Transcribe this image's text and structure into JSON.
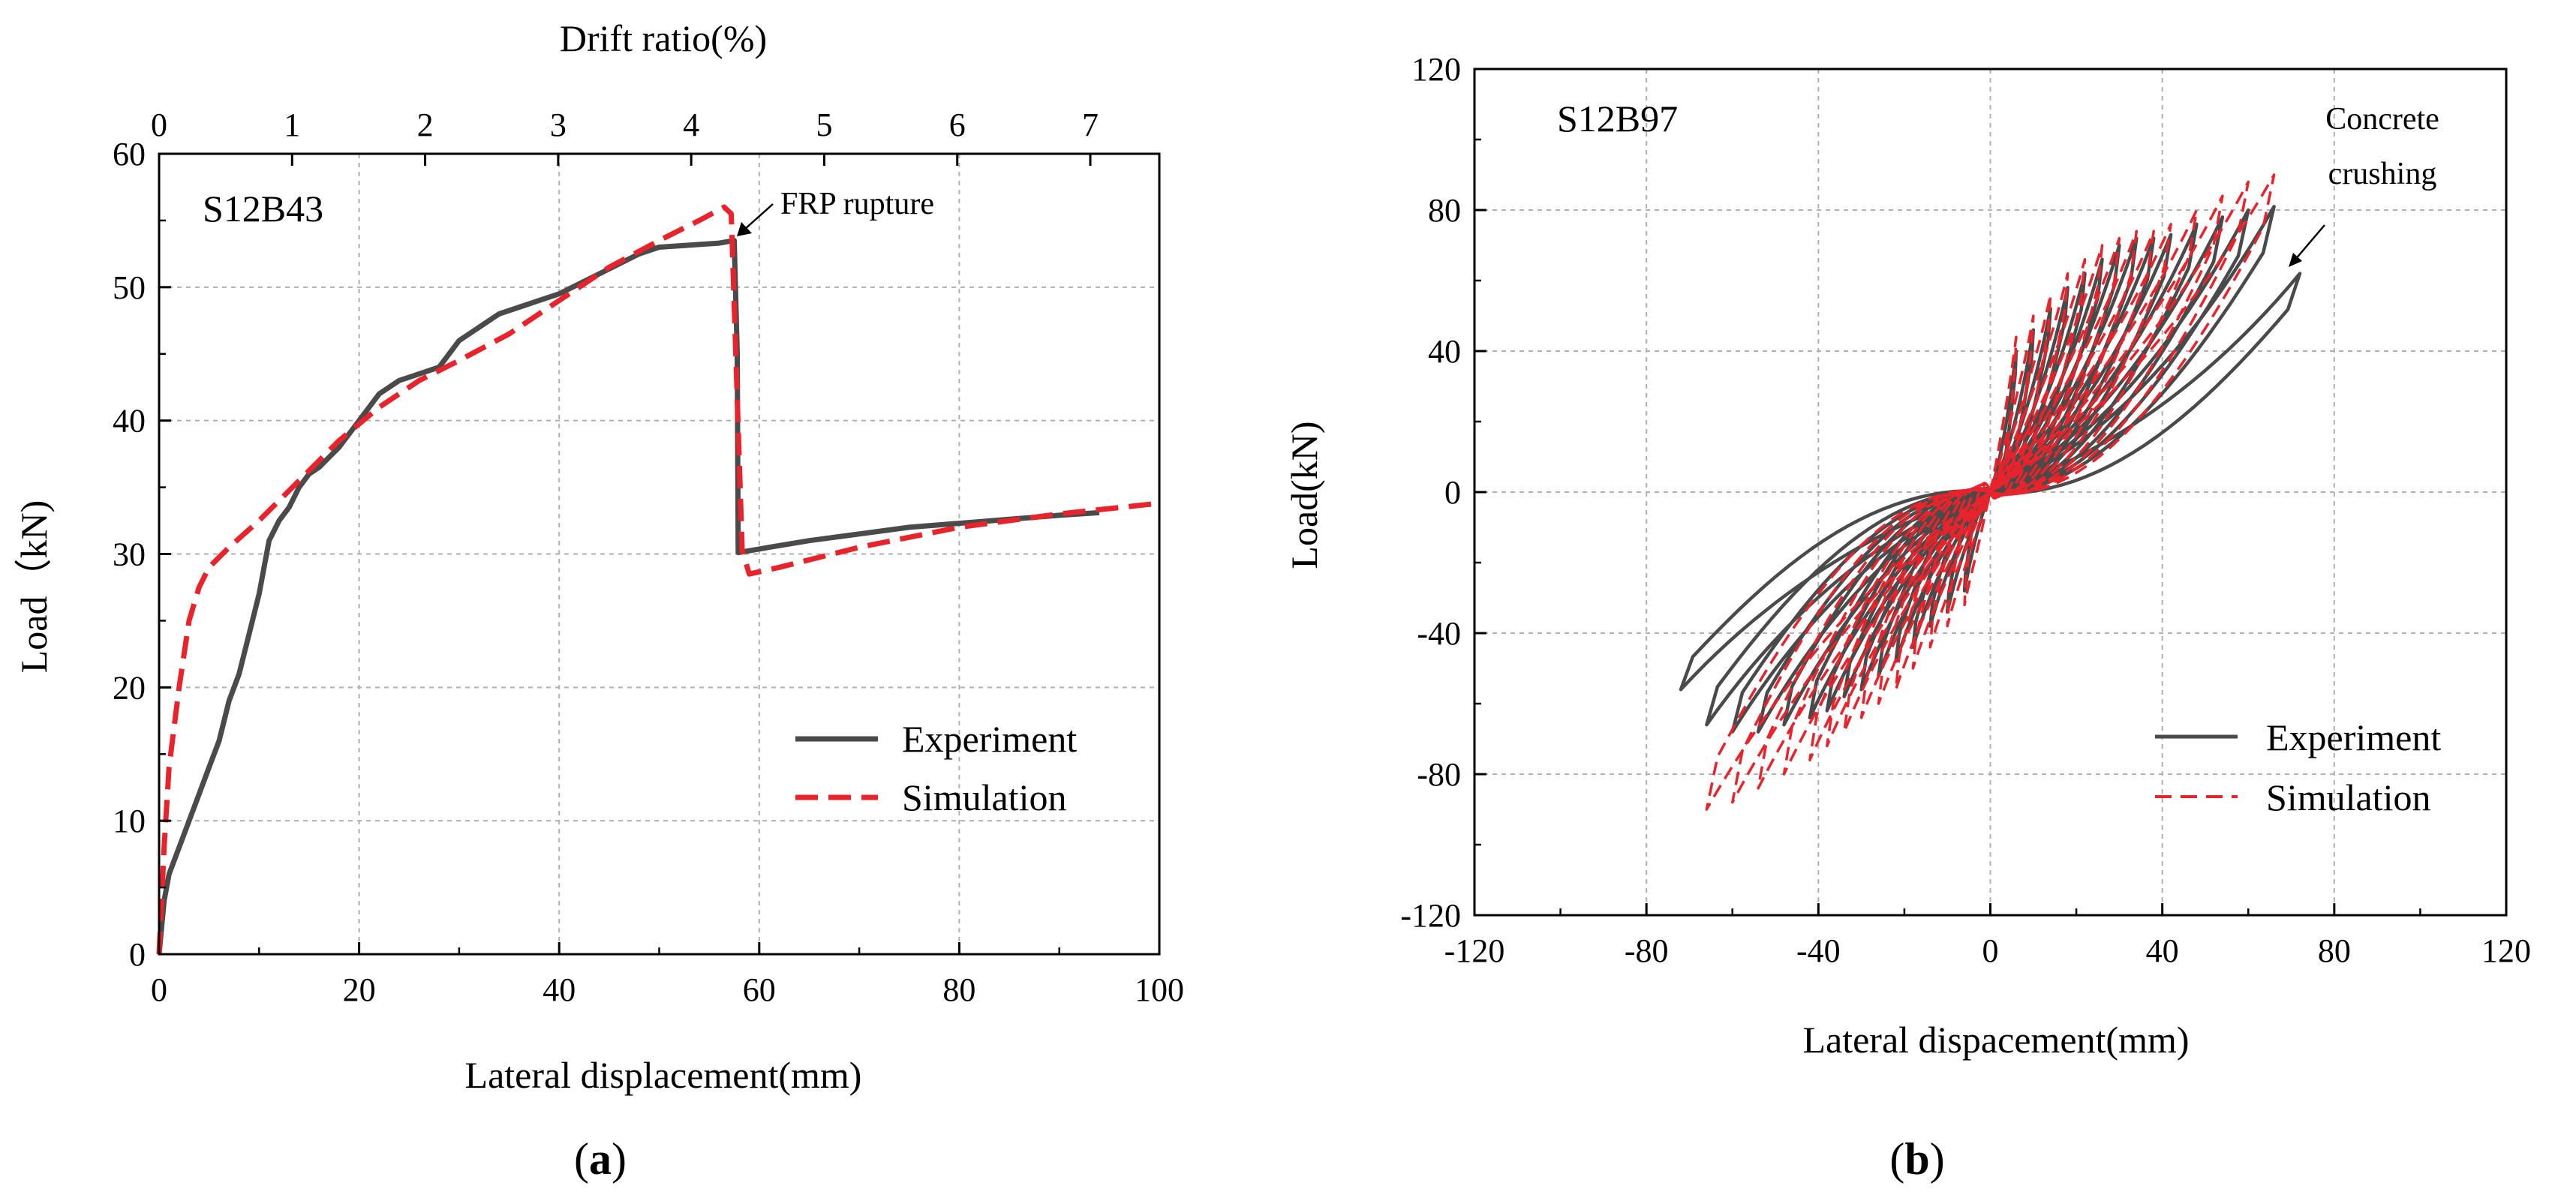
{
  "colors": {
    "experiment": "#4a4a4a",
    "simulation": "#e8232b",
    "grid": "#b0b0b0",
    "axis": "#000000"
  },
  "chart_data": [
    {
      "type": "line",
      "panel": "a",
      "panel_label": "a",
      "specimen": "S12B43",
      "xlabel": "Lateral displacement(mm)",
      "ylabel": "Load（kN)",
      "top_xlabel": "Drift ratio(%)",
      "xlim": [
        0,
        100
      ],
      "ylim": [
        0,
        60
      ],
      "x_ticks": [
        0,
        20,
        40,
        60,
        80,
        100
      ],
      "y_ticks": [
        0,
        10,
        20,
        30,
        40,
        50,
        60
      ],
      "top_ticks": [
        0,
        1,
        2,
        3,
        4,
        5,
        6,
        7
      ],
      "top_tick_mm": [
        0,
        13.3,
        26.6,
        39.9,
        53.2,
        66.5,
        79.8,
        93.1
      ],
      "grid": true,
      "legend_position": "bottom-right",
      "annotation": {
        "text": "FRP rupture",
        "x": 57.8,
        "y": 53.5
      },
      "series": [
        {
          "name": "Experiment",
          "style": "solid",
          "x": [
            0,
            0.5,
            1,
            2,
            3,
            4,
            5,
            6,
            7,
            8,
            9,
            10,
            11,
            12,
            13,
            14,
            15,
            16,
            18,
            20,
            22,
            24,
            26,
            28,
            30,
            32,
            34,
            36,
            38,
            40,
            44,
            48,
            50,
            52,
            54,
            56,
            57.5,
            57.8,
            57.9,
            61,
            65,
            70,
            75,
            80,
            85,
            90,
            94
          ],
          "y": [
            0,
            4,
            6,
            8,
            10,
            12,
            14,
            16,
            19,
            21,
            24,
            27,
            31,
            32.5,
            33.5,
            35,
            36,
            36.5,
            38,
            40,
            42,
            43,
            43.5,
            44,
            46,
            47,
            48,
            48.5,
            49,
            49.5,
            51,
            52.5,
            53,
            53.1,
            53.2,
            53.3,
            53.5,
            45,
            30.1,
            30.5,
            31,
            31.5,
            32,
            32.3,
            32.6,
            32.9,
            33.1
          ]
        },
        {
          "name": "Simulation",
          "style": "dashed",
          "x": [
            0,
            0.5,
            1,
            2,
            3,
            4,
            5,
            7,
            10,
            14,
            18,
            22,
            26,
            30,
            35,
            40,
            45,
            50,
            54,
            56.5,
            57.2,
            58.3,
            59,
            62,
            70,
            80,
            90,
            100
          ],
          "y": [
            0,
            8,
            14,
            20,
            25,
            27.5,
            29,
            30.5,
            32.5,
            35.5,
            38.5,
            41,
            43,
            44.5,
            46.5,
            49,
            51.5,
            53.5,
            55,
            56,
            55.5,
            30.3,
            28.5,
            29,
            30.5,
            32,
            33,
            33.8
          ]
        }
      ]
    },
    {
      "type": "line",
      "panel": "b",
      "panel_label": "b",
      "specimen": "S12B97",
      "xlabel": "Lateral dispacement(mm)",
      "ylabel": "Load(kN)",
      "xlim": [
        -120,
        120
      ],
      "ylim": [
        -120,
        120
      ],
      "x_ticks": [
        -120,
        -80,
        -40,
        0,
        40,
        80,
        120
      ],
      "y_ticks": [
        -120,
        -80,
        -40,
        0,
        40,
        80,
        120
      ],
      "grid": true,
      "legend_position": "bottom-right",
      "annotation": {
        "text_lines": [
          "Concrete",
          "crushing"
        ],
        "x": 64,
        "y": 63
      },
      "series": [
        {
          "name": "Experiment",
          "style": "solid",
          "amplitudes_mm": [
            6,
            10,
            14,
            18,
            22,
            26,
            30,
            34,
            38,
            42,
            48,
            54,
            60,
            66,
            72
          ],
          "peak_load_pos_kN": [
            40,
            46,
            52,
            58,
            62,
            66,
            70,
            72,
            72,
            73,
            76,
            78,
            80,
            81,
            62
          ],
          "peak_load_neg_kN": [
            -28,
            -34,
            -38,
            -44,
            -48,
            -52,
            -56,
            -58,
            -62,
            -64,
            -66,
            -68,
            -68,
            -66,
            -56
          ]
        },
        {
          "name": "Simulation",
          "style": "dashed",
          "amplitudes_mm": [
            6,
            10,
            14,
            18,
            22,
            26,
            30,
            34,
            38,
            42,
            48,
            54,
            60,
            66
          ],
          "peak_load_pos_kN": [
            44,
            50,
            56,
            62,
            66,
            70,
            72,
            74,
            74,
            76,
            80,
            84,
            88,
            90
          ],
          "peak_load_neg_kN": [
            -32,
            -38,
            -44,
            -50,
            -56,
            -60,
            -64,
            -68,
            -72,
            -76,
            -80,
            -84,
            -88,
            -90
          ]
        }
      ]
    }
  ]
}
